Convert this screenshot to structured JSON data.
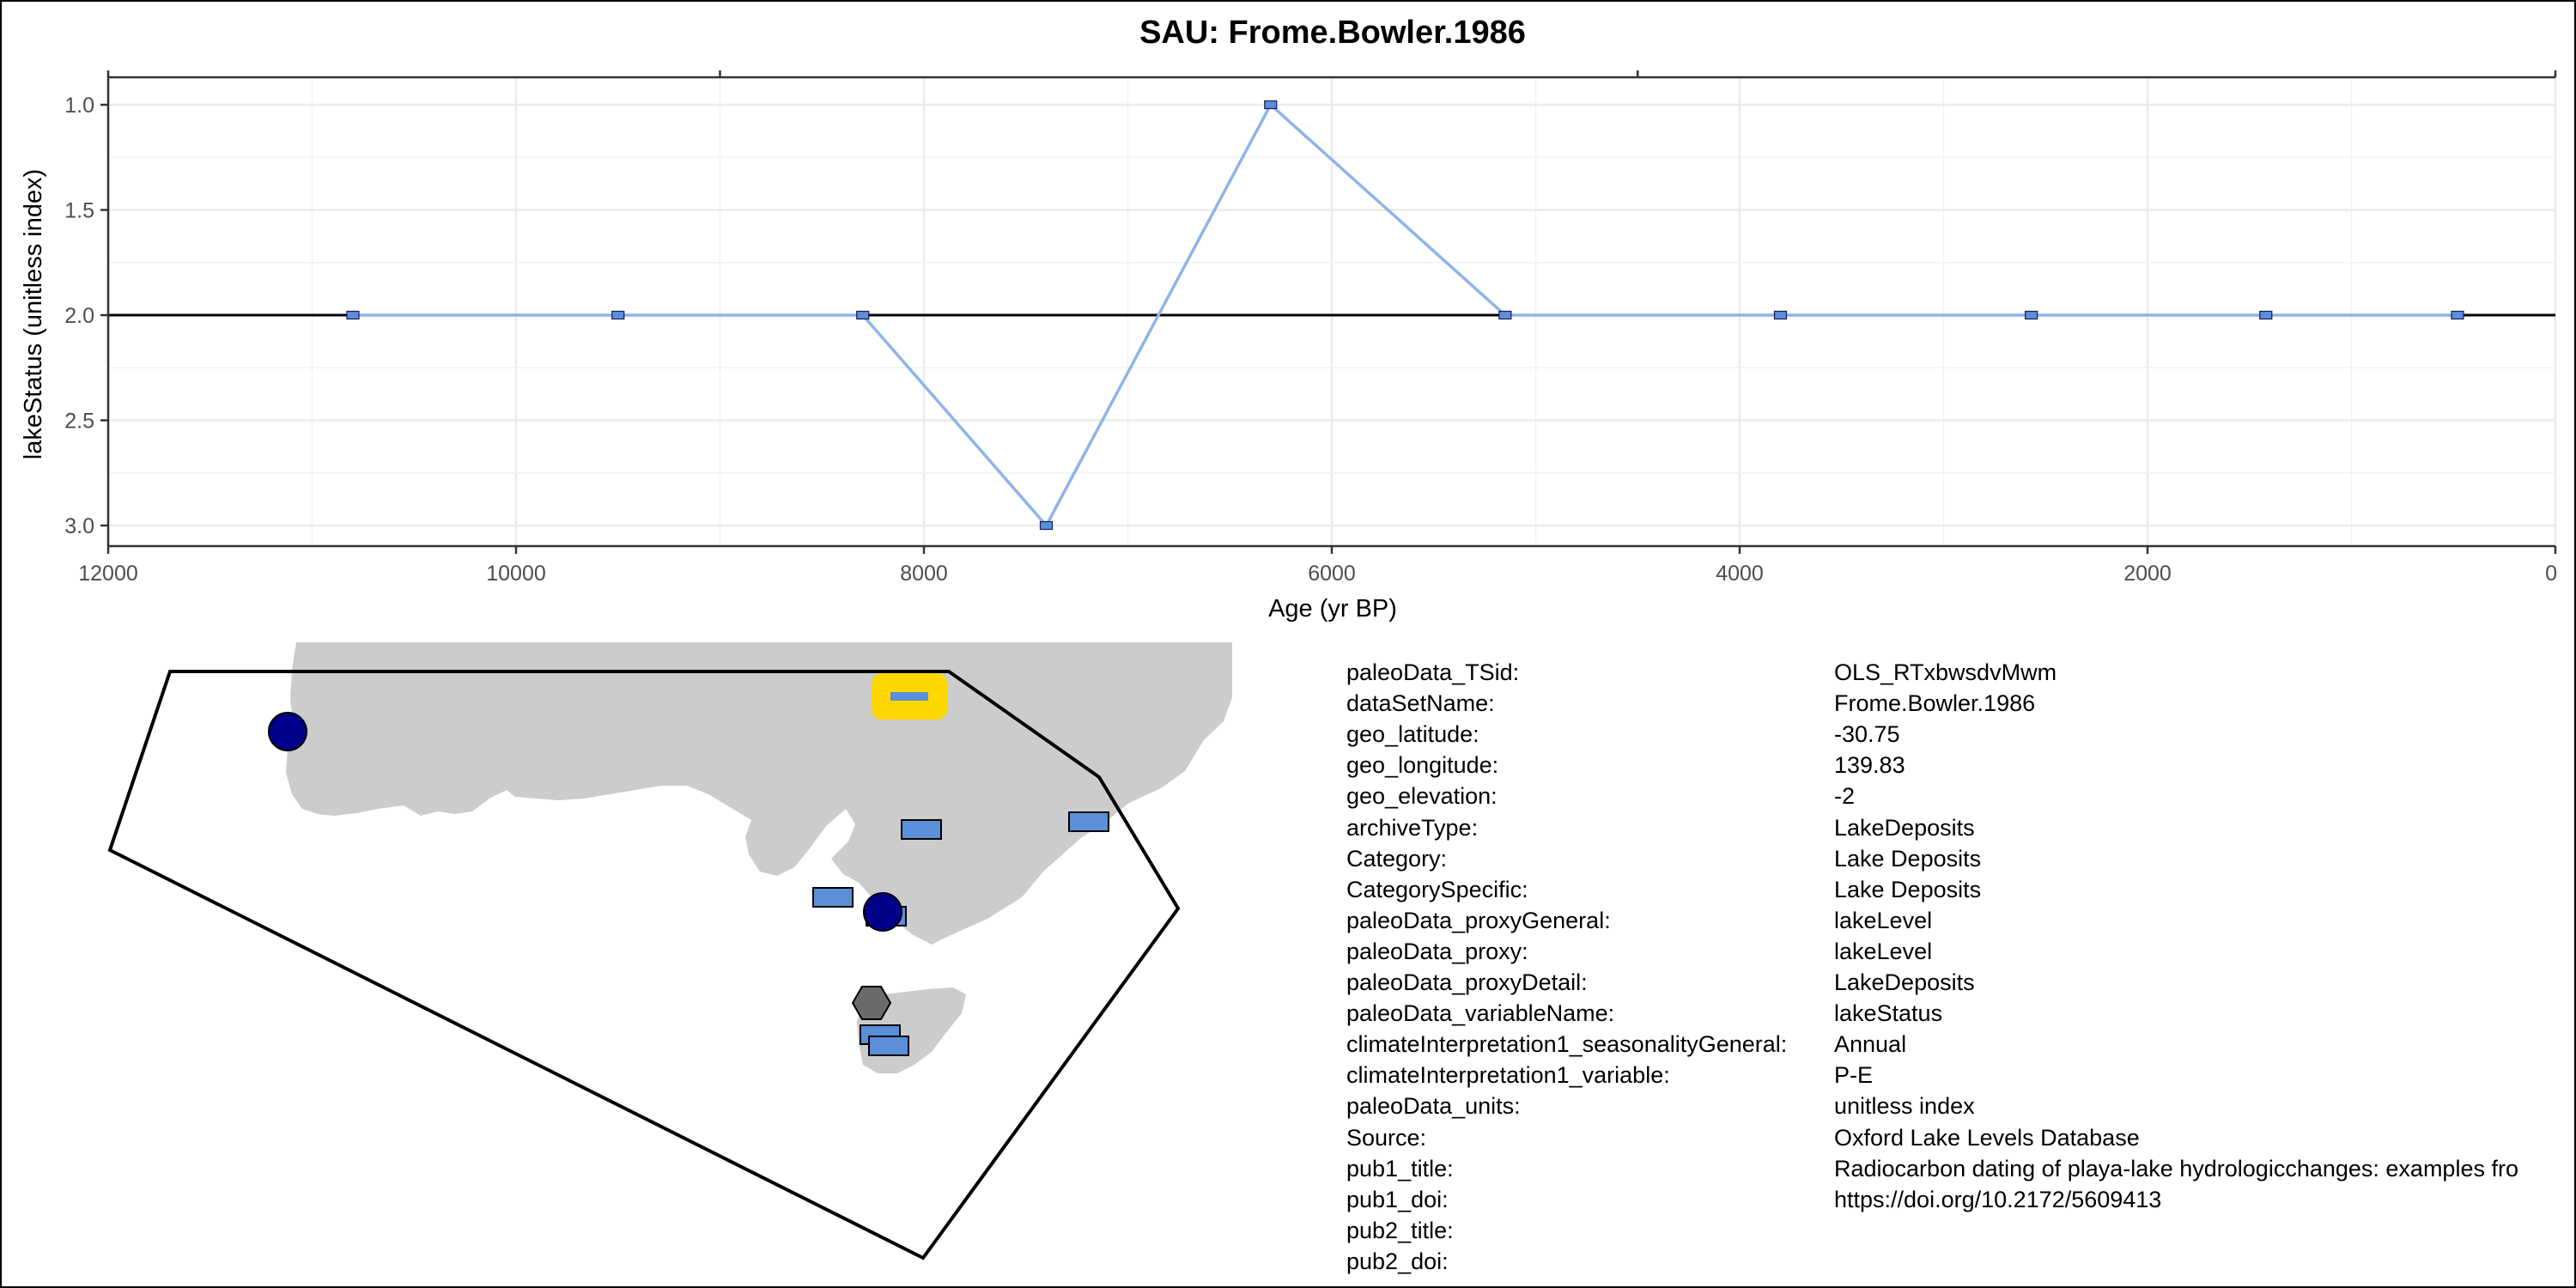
{
  "chart_data": {
    "type": "line",
    "title": "SAU: Frome.Bowler.1986",
    "xlabel": "Age (yr BP)",
    "ylabel": "lakeStatus (unitless index)",
    "xlim": [
      12000,
      0
    ],
    "ylim": [
      3.0,
      1.0
    ],
    "x_reversed": true,
    "y_reversed": true,
    "grid": true,
    "x_ticks": [
      12000,
      10000,
      8000,
      6000,
      4000,
      2000,
      0
    ],
    "x_tick_labels": [
      "12000",
      "10000",
      "8000",
      "6000",
      "4000",
      "2000",
      "0"
    ],
    "y_ticks": [
      1.0,
      1.5,
      2.0,
      2.5,
      3.0
    ],
    "y_tick_labels": [
      "1.0",
      "1.5",
      "2.0",
      "2.5",
      "3.0"
    ],
    "reference_line": 2.0,
    "line_color": "#8db4ea",
    "marker_color": "#5b8fd8",
    "series": [
      {
        "x": [
          10800,
          9500,
          8300,
          7400,
          6300,
          5150,
          3800,
          2570,
          1420,
          480
        ],
        "y": [
          2,
          2,
          2,
          3,
          1,
          2,
          2,
          2,
          2,
          2
        ]
      }
    ]
  },
  "map": {
    "land_color": "#cccccc",
    "outline_color": "#000000",
    "highlight_color": "#ffd700",
    "markers": [
      {
        "shape": "rect",
        "color": "#5b8fd8",
        "highlighted": true
      },
      {
        "shape": "circle",
        "color": "#00008b"
      },
      {
        "shape": "rect",
        "color": "#5b8fd8"
      },
      {
        "shape": "rect",
        "color": "#5b8fd8"
      },
      {
        "shape": "rect",
        "color": "#5b8fd8"
      },
      {
        "shape": "rect",
        "color": "#5b8fd8"
      },
      {
        "shape": "circle",
        "color": "#00008b"
      },
      {
        "shape": "hexagon",
        "color": "#6b6b6b"
      },
      {
        "shape": "rect",
        "color": "#5b8fd8"
      },
      {
        "shape": "rect",
        "color": "#5b8fd8"
      }
    ]
  },
  "metadata": [
    {
      "key": "paleoData_TSid:",
      "value": "OLS_RTxbwsdvMwm"
    },
    {
      "key": "dataSetName:",
      "value": "Frome.Bowler.1986"
    },
    {
      "key": "geo_latitude:",
      "value": "-30.75"
    },
    {
      "key": "geo_longitude:",
      "value": "139.83"
    },
    {
      "key": "geo_elevation:",
      "value": "-2"
    },
    {
      "key": "archiveType:",
      "value": "LakeDeposits"
    },
    {
      "key": "Category:",
      "value": "Lake Deposits"
    },
    {
      "key": "CategorySpecific:",
      "value": "Lake Deposits"
    },
    {
      "key": "paleoData_proxyGeneral:",
      "value": "lakeLevel"
    },
    {
      "key": "paleoData_proxy:",
      "value": "lakeLevel"
    },
    {
      "key": "paleoData_proxyDetail:",
      "value": "LakeDeposits"
    },
    {
      "key": "paleoData_variableName:",
      "value": "lakeStatus"
    },
    {
      "key": "climateInterpretation1_seasonalityGeneral:",
      "value": "Annual"
    },
    {
      "key": "climateInterpretation1_variable:",
      "value": "P-E"
    },
    {
      "key": "paleoData_units:",
      "value": "unitless index"
    },
    {
      "key": "Source:",
      "value": "Oxford Lake Levels Database"
    },
    {
      "key": "pub1_title:",
      "value": "Radiocarbon dating of playa-lake hydrologicchanges: examples fro"
    },
    {
      "key": "pub1_doi:",
      "value": "https://doi.org/10.2172/5609413"
    },
    {
      "key": "pub2_title:",
      "value": ""
    },
    {
      "key": "pub2_doi:",
      "value": ""
    }
  ]
}
